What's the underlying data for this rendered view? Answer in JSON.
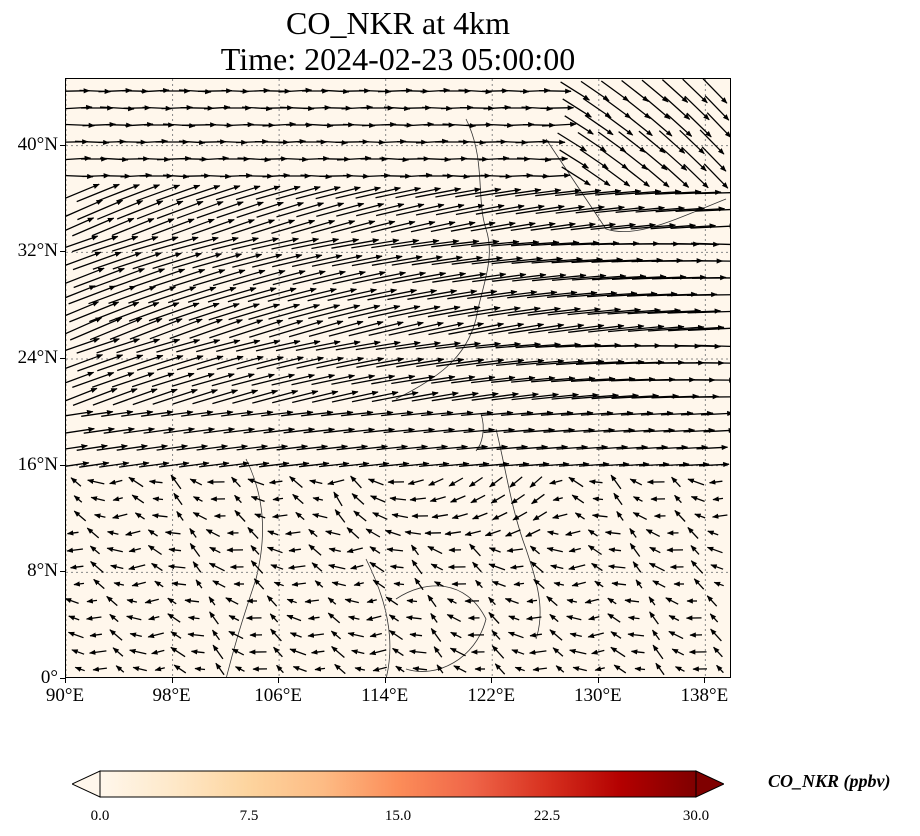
{
  "title": {
    "line1": "CO_NKR at 4km",
    "line2": "Time: 2024-02-23 05:00:00"
  },
  "map": {
    "lon_range": [
      90,
      140
    ],
    "lat_range": [
      0,
      45
    ],
    "x_ticks": [
      {
        "value": 90,
        "label": "90°E"
      },
      {
        "value": 98,
        "label": "98°E"
      },
      {
        "value": 106,
        "label": "106°E"
      },
      {
        "value": 114,
        "label": "114°E"
      },
      {
        "value": 122,
        "label": "122°E"
      },
      {
        "value": 130,
        "label": "130°E"
      },
      {
        "value": 138,
        "label": "138°E"
      }
    ],
    "y_ticks": [
      {
        "value": 0,
        "label": "0°"
      },
      {
        "value": 8,
        "label": "8°N"
      },
      {
        "value": 16,
        "label": "16°N"
      },
      {
        "value": 24,
        "label": "24°N"
      },
      {
        "value": 32,
        "label": "32°N"
      },
      {
        "value": 40,
        "label": "40°N"
      }
    ],
    "gridlines": "dotted",
    "background_color": "#fff7ec",
    "vector_color": "#000000",
    "coast_color": "#333333"
  },
  "colorbar": {
    "label": "CO_NKR (ppbv)",
    "range": [
      0,
      30
    ],
    "ticks": [
      "0.0",
      "7.5",
      "15.0",
      "22.5",
      "30.0"
    ],
    "colormap": "OrRd",
    "stops": [
      "#fff7ec",
      "#fee8c8",
      "#fdd49e",
      "#fdbb84",
      "#fc8d59",
      "#ef6548",
      "#d7301f",
      "#b30000",
      "#7f0000"
    ],
    "extend": "both"
  }
}
